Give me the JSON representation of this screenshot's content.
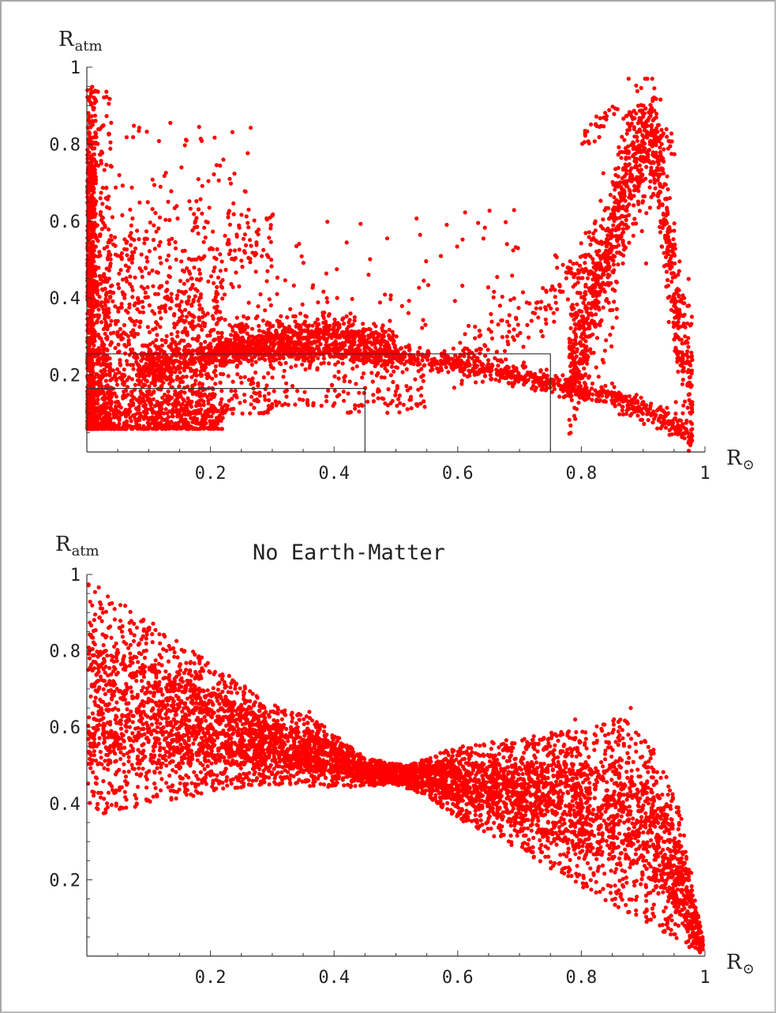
{
  "chart_data": [
    {
      "type": "scatter",
      "title": "",
      "xlabel": "R",
      "xlabel_symbol": "⊙",
      "ylabel": "R",
      "ylabel_sub": "atm",
      "xlim": [
        0,
        1
      ],
      "ylim": [
        0,
        1
      ],
      "xticks": [
        "0.2",
        "0.4",
        "0.6",
        "0.8",
        "1"
      ],
      "xtick_values": [
        0.2,
        0.4,
        0.6,
        0.8,
        1
      ],
      "yticks": [
        "0.2",
        "0.4",
        "0.6",
        "0.8",
        "1"
      ],
      "ytick_values": [
        0.2,
        0.4,
        0.6,
        0.8,
        1
      ],
      "point_color": "#ff0000",
      "grid": false,
      "boxes": [
        {
          "x": [
            0,
            0.75
          ],
          "y": [
            0,
            0.255
          ]
        },
        {
          "x": [
            0,
            0.45
          ],
          "y": [
            0,
            0.165
          ]
        }
      ],
      "bands": [
        {
          "n": 650,
          "x": [
            0,
            0.012
          ],
          "y": [
            0.06,
            0.75
          ],
          "upper": "exp"
        },
        {
          "n": 320,
          "x": [
            0.012,
            0.04
          ],
          "y": [
            0.06,
            0.95
          ],
          "upper": "exp"
        },
        {
          "n": 220,
          "x": [
            0,
            0.015
          ],
          "y": [
            0.4,
            0.95
          ]
        },
        {
          "n": 1000,
          "x": [
            0,
            0.22
          ],
          "y": [
            0.06,
            0.48
          ],
          "upper": "exp"
        },
        {
          "n": 500,
          "x": [
            0.05,
            0.3
          ],
          "y": [
            0.1,
            0.65
          ],
          "upper": "exp"
        },
        {
          "n": 140,
          "x": [
            0.02,
            0.28
          ],
          "y": [
            0.5,
            0.86
          ],
          "upper": "exp"
        },
        {
          "n": 120,
          "x": [
            0.3,
            0.55
          ],
          "y": [
            0.12,
            0.45
          ],
          "upper": "exp"
        },
        {
          "n": 55,
          "x": [
            0.25,
            0.7
          ],
          "y": [
            0.38,
            0.63
          ]
        },
        {
          "n": 40,
          "x": [
            0.4,
            0.55
          ],
          "y": [
            0.1,
            0.2
          ]
        }
      ],
      "curves": [
        {
          "n": 900,
          "x": [
            0.08,
            0.5
          ],
          "xy": [
            [
              0,
              0.17
            ],
            [
              0.15,
              0.24
            ],
            [
              0.3,
              0.3
            ],
            [
              0.4,
              0.31
            ],
            [
              0.5,
              0.28
            ]
          ],
          "spread": 0.035
        },
        {
          "n": 1250,
          "x": [
            0.2,
            0.98
          ],
          "xy": [
            [
              0.2,
              0.26
            ],
            [
              0.4,
              0.26
            ],
            [
              0.6,
              0.23
            ],
            [
              0.75,
              0.18
            ],
            [
              0.85,
              0.14
            ],
            [
              0.92,
              0.1
            ],
            [
              0.96,
              0.06
            ],
            [
              1,
              0
            ]
          ],
          "spread": 0.02
        },
        {
          "n": 1100,
          "x": [
            0.78,
            0.98
          ],
          "xy": [
            [
              0.78,
              0.2
            ],
            [
              0.84,
              0.5
            ],
            [
              0.88,
              0.75
            ],
            [
              0.92,
              0.8
            ],
            [
              0.96,
              0.3
            ],
            [
              0.99,
              0.03
            ]
          ],
          "spread": 0.12
        },
        {
          "n": 160,
          "x": [
            0.6,
            0.82
          ],
          "xy": [
            [
              0.6,
              0.27
            ],
            [
              0.7,
              0.33
            ],
            [
              0.78,
              0.45
            ],
            [
              0.82,
              0.52
            ]
          ],
          "spread": 0.06
        },
        {
          "n": 80,
          "x": [
            0.8,
            0.95
          ],
          "xy": [
            [
              0.8,
              0.82
            ],
            [
              0.85,
              0.88
            ],
            [
              0.9,
              0.86
            ],
            [
              0.95,
              0.8
            ]
          ],
          "spread": 0.03
        }
      ]
    },
    {
      "type": "scatter",
      "title": "No Earth-Matter",
      "xlabel": "R",
      "xlabel_symbol": "⊙",
      "ylabel": "R",
      "ylabel_sub": "atm",
      "xlim": [
        0,
        1
      ],
      "ylim": [
        0,
        1
      ],
      "xticks": [
        "0.2",
        "0.4",
        "0.6",
        "0.8",
        "1"
      ],
      "xtick_values": [
        0.2,
        0.4,
        0.6,
        0.8,
        1
      ],
      "yticks": [
        "0.2",
        "0.4",
        "0.6",
        "0.8",
        "1"
      ],
      "ytick_values": [
        0.2,
        0.4,
        0.6,
        0.8,
        1
      ],
      "point_color": "#ff0000",
      "grid": false,
      "envelope": {
        "n": 6200,
        "lower": [
          [
            0,
            0.36
          ],
          [
            0.1,
            0.39
          ],
          [
            0.2,
            0.43
          ],
          [
            0.3,
            0.45
          ],
          [
            0.4,
            0.44
          ],
          [
            0.5,
            0.45
          ],
          [
            0.55,
            0.42
          ],
          [
            0.6,
            0.36
          ],
          [
            0.7,
            0.28
          ],
          [
            0.8,
            0.18
          ],
          [
            0.9,
            0.09
          ],
          [
            0.96,
            0.03
          ],
          [
            1,
            0.005
          ]
        ],
        "upper": [
          [
            0,
            0.99
          ],
          [
            0.1,
            0.88
          ],
          [
            0.2,
            0.77
          ],
          [
            0.3,
            0.66
          ],
          [
            0.37,
            0.62
          ],
          [
            0.45,
            0.52
          ],
          [
            0.52,
            0.5
          ],
          [
            0.6,
            0.55
          ],
          [
            0.7,
            0.57
          ],
          [
            0.8,
            0.6
          ],
          [
            0.87,
            0.63
          ],
          [
            0.92,
            0.55
          ],
          [
            0.96,
            0.38
          ],
          [
            1,
            0.02
          ]
        ],
        "dense_near": 0.5
      },
      "extra_points": [
        [
          0.88,
          0.65
        ],
        [
          0.79,
          0.62
        ],
        [
          0.36,
          0.64
        ]
      ]
    }
  ]
}
